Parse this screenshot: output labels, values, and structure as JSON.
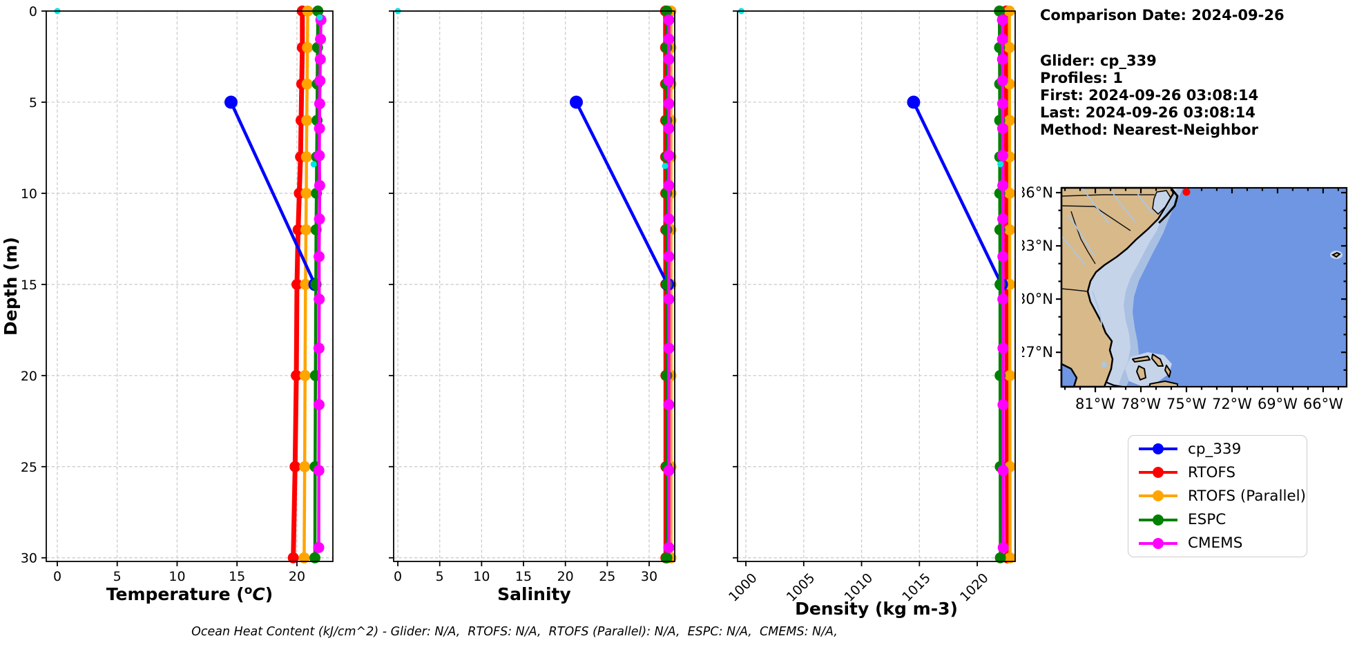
{
  "info": {
    "comparison_date": "Comparison Date: 2024-09-26",
    "glider": "Glider: cp_339",
    "profiles": "Profiles: 1",
    "first": "First: 2024-09-26 03:08:14",
    "last": "Last: 2024-09-26 03:08:14",
    "method": "Method: Nearest-Neighbor"
  },
  "caption": "Ocean Heat Content (kJ/cm^2) - Glider: N/A,  RTOFS: N/A,  RTOFS (Parallel): N/A,  ESPC: N/A,  CMEMS: N/A,",
  "legend": {
    "items": [
      {
        "label": "cp_339",
        "color": "#0000ff"
      },
      {
        "label": "RTOFS",
        "color": "#ff0000"
      },
      {
        "label": "RTOFS (Parallel)",
        "color": "#ffa500"
      },
      {
        "label": "ESPC",
        "color": "#008000"
      },
      {
        "label": "CMEMS",
        "color": "#ff00ff"
      }
    ]
  },
  "map": {
    "lat_ticks": [
      {
        "label": "36°N",
        "lat": 36
      },
      {
        "label": "33°N",
        "lat": 33
      },
      {
        "label": "30°N",
        "lat": 30
      },
      {
        "label": "27°N",
        "lat": 27
      }
    ],
    "lon_ticks": [
      {
        "label": "81°W",
        "lon": -81
      },
      {
        "label": "78°W",
        "lon": -78
      },
      {
        "label": "75°W",
        "lon": -75
      },
      {
        "label": "72°W",
        "lon": -72
      },
      {
        "label": "69°W",
        "lon": -69
      },
      {
        "label": "66°W",
        "lon": -66
      }
    ],
    "extent": {
      "lon_min": -83.23,
      "lon_max": -64.45,
      "lat_min": 25.06,
      "lat_max": 36.27
    },
    "glider_marker": {
      "lon": -75.0,
      "lat": 36.1,
      "color": "#ff0000"
    },
    "colors": {
      "land": "#d8b98a",
      "ocean": "#6f96e3",
      "shelf_mid": "#a9c0e2",
      "shelf_light": "#c6d4ea",
      "river": "#a8c8e8",
      "coast": "#000000"
    }
  },
  "chart_data": [
    {
      "type": "line",
      "xlabel": [
        {
          "t": "Temperature ("
        },
        {
          "t": "o",
          "sup": true
        },
        {
          "t": "C",
          "it": true
        },
        {
          "t": ")"
        }
      ],
      "ylabel": "Depth (m)",
      "xlim": [
        -0.92,
        23.0
      ],
      "xticks": [
        0,
        5,
        10,
        15,
        20
      ],
      "rotate_xticks": false,
      "ylim": [
        0,
        30.2
      ],
      "yticks": [
        0,
        5,
        10,
        15,
        20,
        25,
        30
      ],
      "show_ytick_labels": true,
      "grid": true,
      "series": [
        {
          "name": "RTOFS",
          "color": "#ff0000",
          "lw": 7,
          "ms": 8,
          "points": [
            [
              20.45,
              0
            ],
            [
              20.45,
              2
            ],
            [
              20.4,
              4
            ],
            [
              20.35,
              6
            ],
            [
              20.3,
              8
            ],
            [
              20.2,
              10
            ],
            [
              20.1,
              12
            ],
            [
              20.0,
              15
            ],
            [
              19.95,
              20
            ],
            [
              19.85,
              25
            ],
            [
              19.7,
              30
            ]
          ]
        },
        {
          "name": "RTOFS (Parallel)",
          "color": "#ffa500",
          "lw": 4.5,
          "ms": 8,
          "points": [
            [
              20.9,
              0
            ],
            [
              20.88,
              2
            ],
            [
              20.85,
              4
            ],
            [
              20.82,
              6
            ],
            [
              20.8,
              8
            ],
            [
              20.78,
              10
            ],
            [
              20.75,
              12
            ],
            [
              20.72,
              15
            ],
            [
              20.68,
              20
            ],
            [
              20.65,
              25
            ],
            [
              20.6,
              30
            ]
          ]
        },
        {
          "name": "cp_339",
          "color": "#0000ff",
          "lw": 4.5,
          "ms": 9.5,
          "points": [
            [
              14.5,
              5
            ],
            [
              21.5,
              15
            ]
          ]
        },
        {
          "name": "ESPC",
          "color": "#008000",
          "lw": 4.5,
          "ms": 8,
          "points": [
            [
              21.75,
              0
            ],
            [
              21.72,
              2
            ],
            [
              21.7,
              4
            ],
            [
              21.68,
              6
            ],
            [
              21.65,
              8
            ],
            [
              21.63,
              10
            ],
            [
              21.6,
              12
            ],
            [
              21.58,
              15
            ],
            [
              21.55,
              20
            ],
            [
              21.52,
              25
            ],
            [
              21.5,
              30
            ]
          ]
        },
        {
          "name": "CMEMS",
          "color": "#ff00ff",
          "lw": 4.5,
          "ms": 8,
          "points": [
            [
              22.0,
              0.49
            ],
            [
              21.97,
              1.54
            ],
            [
              21.95,
              2.65
            ],
            [
              21.92,
              3.82
            ],
            [
              21.9,
              5.08
            ],
            [
              21.88,
              6.44
            ],
            [
              21.87,
              7.93
            ],
            [
              21.9,
              9.57
            ],
            [
              21.88,
              11.41
            ],
            [
              21.85,
              13.47
            ],
            [
              21.86,
              15.81
            ],
            [
              21.84,
              18.5
            ],
            [
              21.85,
              21.6
            ],
            [
              21.83,
              25.21
            ],
            [
              21.82,
              29.44
            ]
          ]
        },
        {
          "name": "surface-points",
          "color": "#00e5e5",
          "lw": 0,
          "ms": 4.5,
          "points": [
            [
              0,
              0
            ],
            [
              21.9,
              0.35
            ],
            [
              21.4,
              8.4
            ]
          ]
        }
      ]
    },
    {
      "type": "line",
      "xlabel": [
        {
          "t": "Salinity"
        }
      ],
      "ylabel": "",
      "xlim": [
        -0.5,
        33.05
      ],
      "xticks": [
        0,
        5,
        10,
        15,
        20,
        25,
        30
      ],
      "rotate_xticks": false,
      "ylim": [
        0,
        30.2
      ],
      "yticks": [
        0,
        5,
        10,
        15,
        20,
        25,
        30
      ],
      "show_ytick_labels": false,
      "grid": true,
      "series": [
        {
          "name": "RTOFS",
          "color": "#ff0000",
          "lw": 7,
          "ms": 8,
          "points": [
            [
              31.95,
              0
            ],
            [
              31.96,
              2
            ],
            [
              31.96,
              4
            ],
            [
              31.97,
              6
            ],
            [
              31.97,
              8
            ],
            [
              31.98,
              10
            ],
            [
              31.98,
              12
            ],
            [
              31.99,
              15
            ],
            [
              32.0,
              20
            ],
            [
              32.0,
              25
            ],
            [
              32.0,
              30
            ]
          ]
        },
        {
          "name": "RTOFS (Parallel)",
          "color": "#ffa500",
          "lw": 4.5,
          "ms": 8,
          "points": [
            [
              32.6,
              0
            ],
            [
              32.6,
              2
            ],
            [
              32.6,
              4
            ],
            [
              32.6,
              6
            ],
            [
              32.6,
              8
            ],
            [
              32.6,
              10
            ],
            [
              32.6,
              12
            ],
            [
              32.6,
              15
            ],
            [
              32.6,
              20
            ],
            [
              32.6,
              25
            ],
            [
              32.6,
              30
            ]
          ]
        },
        {
          "name": "cp_339",
          "color": "#0000ff",
          "lw": 4.5,
          "ms": 9.5,
          "points": [
            [
              21.3,
              5
            ],
            [
              32.2,
              15
            ]
          ]
        },
        {
          "name": "ESPC",
          "color": "#008000",
          "lw": 4.5,
          "ms": 8,
          "points": [
            [
              32.1,
              0
            ],
            [
              32.1,
              2
            ],
            [
              32.1,
              4
            ],
            [
              32.1,
              6
            ],
            [
              32.1,
              8
            ],
            [
              32.1,
              10
            ],
            [
              32.1,
              12
            ],
            [
              32.1,
              15
            ],
            [
              32.1,
              20
            ],
            [
              32.1,
              25
            ],
            [
              32.1,
              30
            ]
          ]
        },
        {
          "name": "CMEMS",
          "color": "#ff00ff",
          "lw": 4.5,
          "ms": 8,
          "points": [
            [
              32.35,
              0.49
            ],
            [
              32.35,
              1.54
            ],
            [
              32.35,
              2.65
            ],
            [
              32.35,
              3.82
            ],
            [
              32.35,
              5.08
            ],
            [
              32.35,
              6.44
            ],
            [
              32.35,
              7.93
            ],
            [
              32.35,
              9.57
            ],
            [
              32.35,
              11.41
            ],
            [
              32.35,
              13.47
            ],
            [
              32.35,
              15.81
            ],
            [
              32.35,
              18.5
            ],
            [
              32.35,
              21.6
            ],
            [
              32.35,
              25.21
            ],
            [
              32.35,
              29.44
            ]
          ]
        },
        {
          "name": "surface-points",
          "color": "#00e5e5",
          "lw": 0,
          "ms": 4.5,
          "points": [
            [
              0,
              0
            ],
            [
              31.9,
              8.5
            ]
          ]
        }
      ]
    },
    {
      "type": "line",
      "xlabel": [
        {
          "t": "Density (kg m-3)"
        }
      ],
      "ylabel": "",
      "xlim": [
        999.28,
        1023.28
      ],
      "xticks": [
        1000,
        1005,
        1010,
        1015,
        1020
      ],
      "rotate_xticks": true,
      "ylim": [
        0,
        30.2
      ],
      "yticks": [
        0,
        5,
        10,
        15,
        20,
        25,
        30
      ],
      "show_ytick_labels": false,
      "grid": true,
      "series": [
        {
          "name": "RTOFS",
          "color": "#ff0000",
          "lw": 7,
          "ms": 8,
          "points": [
            [
              1022.5,
              0
            ],
            [
              1022.5,
              2
            ],
            [
              1022.52,
              4
            ],
            [
              1022.52,
              6
            ],
            [
              1022.54,
              8
            ],
            [
              1022.55,
              10
            ],
            [
              1022.55,
              12
            ],
            [
              1022.57,
              15
            ],
            [
              1022.58,
              20
            ],
            [
              1022.6,
              25
            ],
            [
              1022.62,
              30
            ]
          ]
        },
        {
          "name": "RTOFS (Parallel)",
          "color": "#ffa500",
          "lw": 4.5,
          "ms": 8,
          "points": [
            [
              1022.78,
              0
            ],
            [
              1022.78,
              2
            ],
            [
              1022.79,
              4
            ],
            [
              1022.79,
              6
            ],
            [
              1022.8,
              8
            ],
            [
              1022.8,
              10
            ],
            [
              1022.8,
              12
            ],
            [
              1022.81,
              15
            ],
            [
              1022.82,
              20
            ],
            [
              1022.83,
              25
            ],
            [
              1022.84,
              30
            ]
          ]
        },
        {
          "name": "cp_339",
          "color": "#0000ff",
          "lw": 4.5,
          "ms": 9.5,
          "points": [
            [
              1014.5,
              5
            ],
            [
              1022.1,
              15
            ]
          ]
        },
        {
          "name": "ESPC",
          "color": "#008000",
          "lw": 4.5,
          "ms": 8,
          "points": [
            [
              1021.92,
              0
            ],
            [
              1021.93,
              2
            ],
            [
              1021.94,
              4
            ],
            [
              1021.94,
              6
            ],
            [
              1021.95,
              8
            ],
            [
              1021.95,
              10
            ],
            [
              1021.96,
              12
            ],
            [
              1021.97,
              15
            ],
            [
              1021.98,
              20
            ],
            [
              1021.99,
              25
            ],
            [
              1022.0,
              30
            ]
          ]
        },
        {
          "name": "CMEMS",
          "color": "#ff00ff",
          "lw": 4.5,
          "ms": 8,
          "points": [
            [
              1022.18,
              0.49
            ],
            [
              1022.18,
              1.54
            ],
            [
              1022.19,
              2.65
            ],
            [
              1022.19,
              3.82
            ],
            [
              1022.2,
              5.08
            ],
            [
              1022.2,
              6.44
            ],
            [
              1022.2,
              7.93
            ],
            [
              1022.21,
              9.57
            ],
            [
              1022.21,
              11.41
            ],
            [
              1022.22,
              13.47
            ],
            [
              1022.22,
              15.81
            ],
            [
              1022.23,
              18.5
            ],
            [
              1022.23,
              21.6
            ],
            [
              1022.24,
              25.21
            ],
            [
              1022.25,
              29.44
            ]
          ]
        },
        {
          "name": "surface-points",
          "color": "#00e5e5",
          "lw": 0,
          "ms": 4.5,
          "points": [
            [
              999.6,
              0
            ],
            [
              1022.0,
              8.4
            ]
          ]
        }
      ]
    }
  ]
}
